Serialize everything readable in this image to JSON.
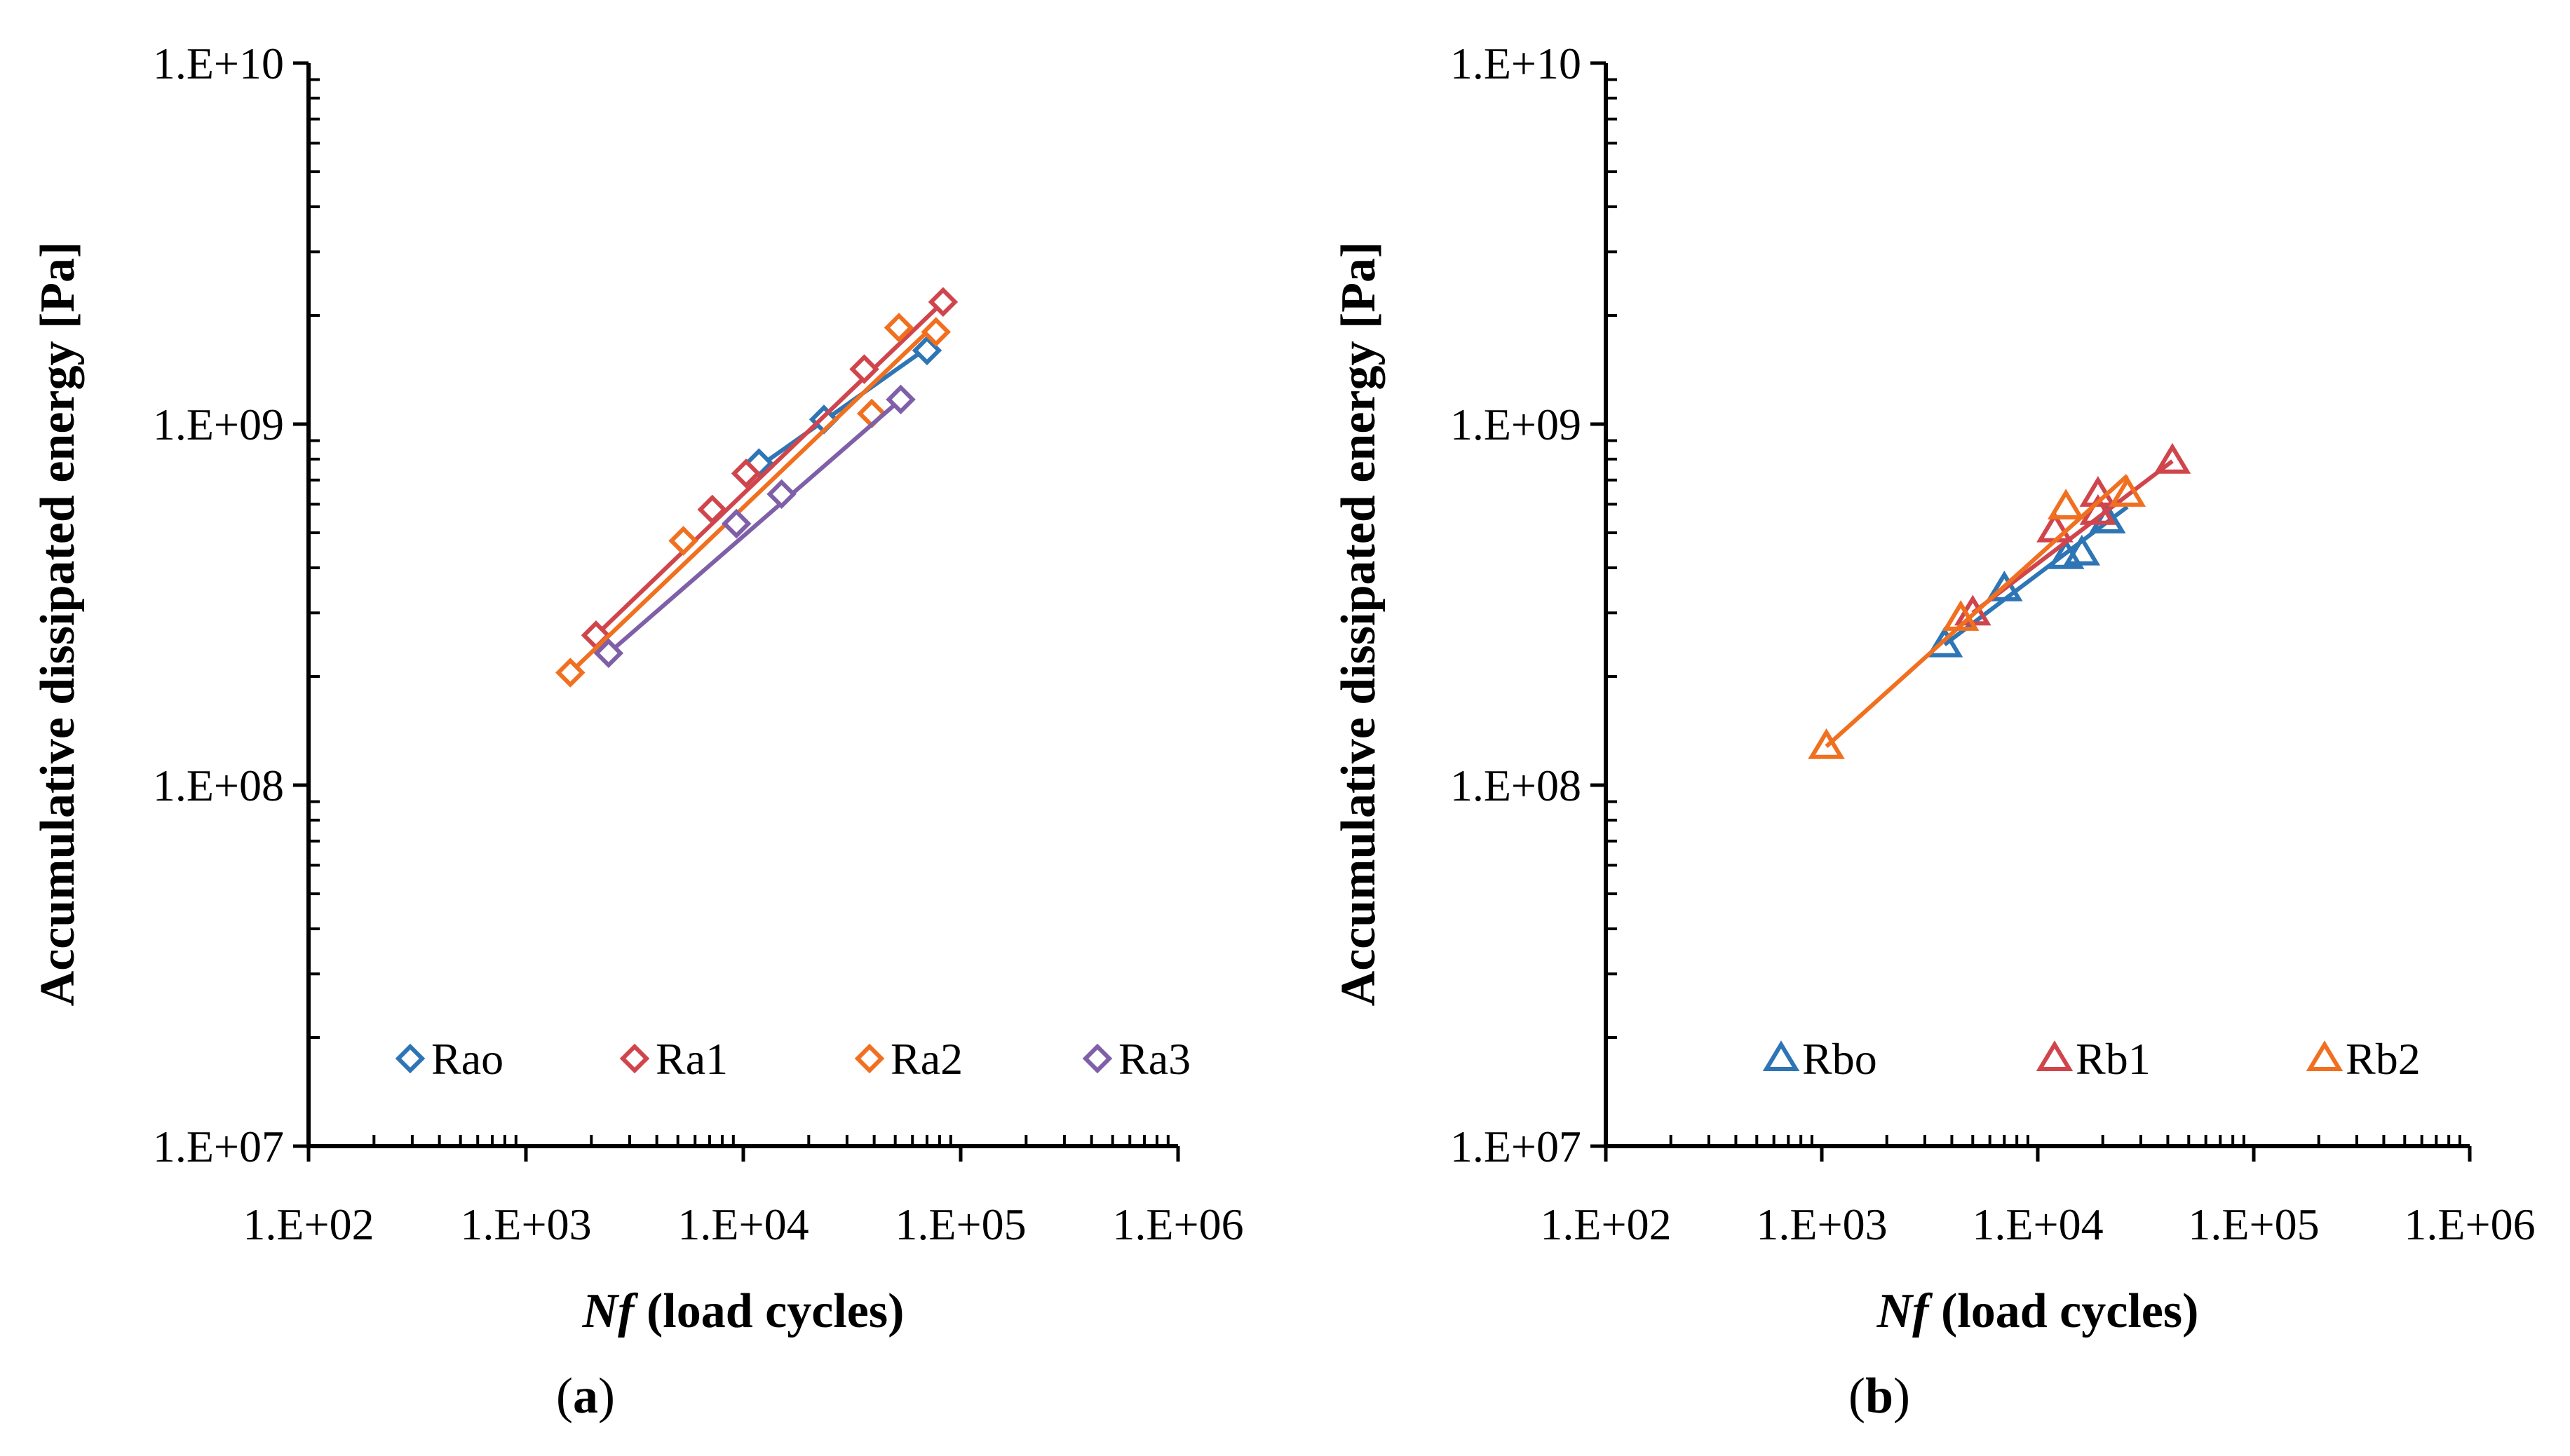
{
  "chart_data": [
    {
      "type": "scatter",
      "panel_label": "a",
      "xlabel_italic": "Nf",
      "xlabel_rest": " (load cycles)",
      "ylabel": "Accumulative dissipated energy [Pa]",
      "x_scale": "log",
      "y_scale": "log",
      "xlim": [
        100,
        1000000
      ],
      "ylim": [
        10000000,
        10000000000
      ],
      "x_tick_labels": [
        "1.E+02",
        "1.E+03",
        "1.E+04",
        "1.E+05",
        "1.E+06"
      ],
      "y_tick_labels": [
        "1.E+07",
        "1.E+08",
        "1.E+09",
        "1.E+10"
      ],
      "grid": false,
      "legend_position": "bottom",
      "marker": "diamond",
      "series": [
        {
          "name": "Rao",
          "color": "#2E75B6",
          "points": [
            [
              11800,
              780000000
            ],
            [
              23500,
              1030000000
            ],
            [
              70000,
              1600000000
            ]
          ],
          "fit": [
            [
              11000,
              740000000
            ],
            [
              80000,
              1720000000
            ]
          ]
        },
        {
          "name": "Ra1",
          "color": "#D0454C",
          "points": [
            [
              2100,
              260000000
            ],
            [
              7200,
              580000000
            ],
            [
              10300,
              730000000
            ],
            [
              36000,
              1420000000
            ],
            [
              83000,
              2180000000
            ]
          ],
          "fit": [
            [
              2100,
              260000000
            ],
            [
              83000,
              2180000000
            ]
          ]
        },
        {
          "name": "Ra2",
          "color": "#F07020",
          "points": [
            [
              1600,
              205000000
            ],
            [
              5300,
              475000000
            ],
            [
              39000,
              1070000000
            ],
            [
              52000,
              1850000000
            ],
            [
              77000,
              1800000000
            ]
          ],
          "fit": [
            [
              1600,
              205000000
            ],
            [
              77000,
              1900000000
            ]
          ]
        },
        {
          "name": "Ra3",
          "color": "#7F5FA8",
          "points": [
            [
              2400,
              232000000
            ],
            [
              9300,
              530000000
            ],
            [
              15000,
              640000000
            ],
            [
              53000,
              1170000000
            ]
          ],
          "fit": [
            [
              2400,
              232000000
            ],
            [
              53000,
              1170000000
            ]
          ]
        }
      ]
    },
    {
      "type": "scatter",
      "panel_label": "b",
      "xlabel_italic": "Nf",
      "xlabel_rest": " (load cycles)",
      "ylabel": "Accumulative dissipated energy [Pa]",
      "x_scale": "log",
      "y_scale": "log",
      "xlim": [
        100,
        1000000
      ],
      "ylim": [
        10000000,
        10000000000
      ],
      "x_tick_labels": [
        "1.E+02",
        "1.E+03",
        "1.E+04",
        "1.E+05",
        "1.E+06"
      ],
      "y_tick_labels": [
        "1.E+07",
        "1.E+08",
        "1.E+09",
        "1.E+10"
      ],
      "grid": false,
      "legend_position": "bottom",
      "marker": "triangle",
      "series": [
        {
          "name": "Rbo",
          "color": "#2E75B6",
          "points": [
            [
              3700,
              245000000
            ],
            [
              7000,
              350000000
            ],
            [
              13500,
              430000000
            ],
            [
              16000,
              440000000
            ],
            [
              21000,
              540000000
            ]
          ],
          "fit": [
            [
              3700,
              245000000
            ],
            [
              26000,
              590000000
            ]
          ]
        },
        {
          "name": "Rb1",
          "color": "#D0454C",
          "points": [
            [
              5000,
              300000000
            ],
            [
              12000,
              510000000
            ],
            [
              19000,
              640000000
            ],
            [
              19000,
              570000000
            ],
            [
              42000,
              790000000
            ]
          ],
          "fit": [
            [
              5000,
              300000000
            ],
            [
              42000,
              790000000
            ]
          ]
        },
        {
          "name": "Rb2",
          "color": "#F07020",
          "points": [
            [
              1050,
              128000000
            ],
            [
              4400,
              290000000
            ],
            [
              13500,
              590000000
            ],
            [
              26000,
              640000000
            ]
          ],
          "fit": [
            [
              1050,
              128000000
            ],
            [
              26000,
              720000000
            ]
          ]
        }
      ]
    }
  ]
}
